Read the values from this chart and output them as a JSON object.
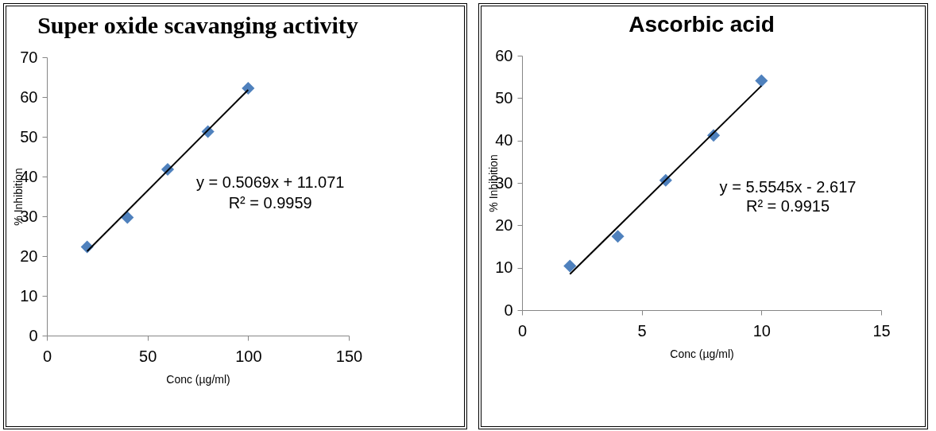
{
  "chart_data": [
    {
      "type": "scatter",
      "title": "Super oxide scavanging activity",
      "xlabel": "Conc (µg/ml)",
      "ylabel": "% Inhibition",
      "xlim": [
        0,
        150
      ],
      "xticks": [
        0,
        50,
        100,
        150
      ],
      "ylim": [
        0,
        70
      ],
      "yticks": [
        0,
        10,
        20,
        30,
        40,
        50,
        60,
        70
      ],
      "grid": false,
      "marker": "diamond",
      "series": [
        {
          "type": "scatter",
          "color": "#4f81bd",
          "x": [
            20,
            40,
            60,
            80,
            100
          ],
          "values": [
            22.3,
            29.7,
            41.8,
            51.3,
            62.2
          ]
        },
        {
          "type": "line",
          "color": "#000000",
          "marker": "none",
          "x": [
            20,
            100
          ],
          "values": [
            21.2,
            61.8
          ]
        }
      ],
      "annotations": [
        "y = 0.5069x + 11.071",
        "R² = 0.9959"
      ]
    },
    {
      "type": "scatter",
      "title": "Ascorbic acid",
      "xlabel": "Conc (µg/ml)",
      "ylabel": "% Inhibition",
      "xlim": [
        0,
        15
      ],
      "xticks": [
        0,
        5,
        10,
        15
      ],
      "ylim": [
        0,
        60
      ],
      "yticks": [
        0,
        10,
        20,
        30,
        40,
        50,
        60
      ],
      "grid": false,
      "marker": "diamond",
      "series": [
        {
          "type": "scatter",
          "color": "#4f81bd",
          "x": [
            2,
            4,
            6,
            8,
            10
          ],
          "values": [
            10.4,
            17.4,
            30.6,
            41.2,
            54.1
          ]
        },
        {
          "type": "line",
          "color": "#000000",
          "marker": "none",
          "x": [
            2,
            10
          ],
          "values": [
            8.5,
            52.9
          ]
        }
      ],
      "annotations": [
        "y = 5.5545x - 2.617",
        "R² = 0.9915"
      ]
    }
  ]
}
